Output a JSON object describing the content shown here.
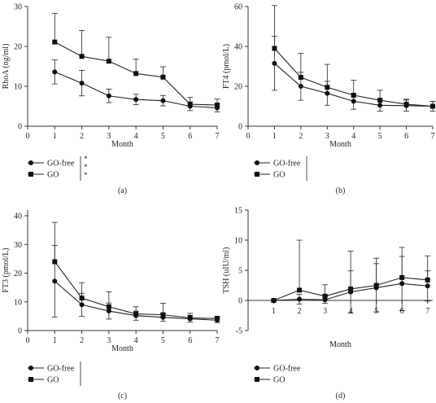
{
  "chart_data": [
    {
      "id": "a",
      "type": "line",
      "panel_label": "(a)",
      "title": "",
      "xlabel": "Month",
      "ylabel": "RhoA (ng/ml)",
      "xlim": [
        0,
        7
      ],
      "ylim": [
        0,
        30
      ],
      "xticks": [
        0,
        1,
        2,
        3,
        4,
        5,
        6,
        7
      ],
      "yticks": [
        0,
        10,
        20,
        30
      ],
      "grid": false,
      "legend_position": "below",
      "significance": "***",
      "x": [
        1,
        2,
        3,
        4,
        5,
        6,
        7
      ],
      "series": [
        {
          "name": "GO-free",
          "marker": "circle",
          "values": [
            13.6,
            10.8,
            7.6,
            6.7,
            6.4,
            5.0,
            4.6
          ],
          "error": [
            3.0,
            3.2,
            1.7,
            1.3,
            1.3,
            1.1,
            1.0
          ],
          "error_dir": "both"
        },
        {
          "name": "GO",
          "marker": "square",
          "values": [
            21.1,
            17.5,
            16.3,
            13.2,
            12.3,
            5.5,
            5.3
          ],
          "error": [
            7.2,
            6.5,
            6.0,
            3.6,
            2.6,
            1.7,
            1.5
          ],
          "error_dir": "up"
        }
      ]
    },
    {
      "id": "b",
      "type": "line",
      "panel_label": "(b)",
      "title": "",
      "xlabel": "Month",
      "ylabel": "FT4 (pmol/L)",
      "xlim": [
        0,
        7
      ],
      "ylim": [
        0,
        60
      ],
      "xticks": [
        0,
        1,
        2,
        3,
        4,
        5,
        6,
        7
      ],
      "yticks": [
        0,
        20,
        40,
        60
      ],
      "grid": false,
      "legend_position": "below",
      "significance": "*",
      "x": [
        1,
        2,
        3,
        4,
        5,
        6,
        7
      ],
      "series": [
        {
          "name": "GO-free",
          "marker": "circle",
          "values": [
            31.5,
            20.0,
            16.5,
            12.5,
            10.5,
            10.3,
            10.0
          ],
          "error": [
            13.5,
            7.0,
            6.0,
            4.0,
            3.0,
            2.8,
            2.5
          ],
          "error_dir": "both"
        },
        {
          "name": "GO",
          "marker": "square",
          "values": [
            39.0,
            24.5,
            19.5,
            15.5,
            13.0,
            11.0,
            10.0
          ],
          "error": [
            21.5,
            12.0,
            11.5,
            7.5,
            5.0,
            2.5,
            2.5
          ],
          "error_dir": "up"
        }
      ]
    },
    {
      "id": "c",
      "type": "line",
      "panel_label": "(c)",
      "title": "",
      "xlabel": "Month",
      "ylabel": "FT3 (pmol/L)",
      "xlim": [
        0,
        7
      ],
      "ylim": [
        0,
        42
      ],
      "xticks": [
        0,
        1,
        2,
        3,
        4,
        5,
        6,
        7
      ],
      "yticks": [
        0,
        10,
        20,
        30,
        40
      ],
      "grid": false,
      "legend_position": "below",
      "significance": "*",
      "x": [
        1,
        2,
        3,
        4,
        5,
        6,
        7
      ],
      "series": [
        {
          "name": "GO-free",
          "marker": "circle",
          "values": [
            17.2,
            9.0,
            6.8,
            5.2,
            4.6,
            4.1,
            3.6
          ],
          "error": [
            12.5,
            4.0,
            2.8,
            1.6,
            1.4,
            1.2,
            0.8
          ],
          "error_dir": "both"
        },
        {
          "name": "GO",
          "marker": "square",
          "values": [
            24.0,
            11.3,
            8.3,
            5.8,
            5.5,
            4.4,
            4.2
          ],
          "error": [
            13.7,
            5.4,
            5.2,
            2.5,
            4.0,
            1.6,
            0.8
          ],
          "error_dir": "up"
        }
      ]
    },
    {
      "id": "d",
      "type": "line",
      "panel_label": "(d)",
      "title": "",
      "xlabel": "Month",
      "ylabel": "TSH (uIU/ml)",
      "xlim": [
        0,
        7.2
      ],
      "ylim": [
        -5,
        15
      ],
      "xticks": [
        1,
        2,
        3,
        4,
        5,
        6,
        7
      ],
      "yticks": [
        -5,
        0,
        5,
        10,
        15
      ],
      "x_axis_at_zero": true,
      "grid": false,
      "legend_position": "below",
      "significance": "",
      "x": [
        1,
        2,
        3,
        4,
        5,
        6,
        7
      ],
      "series": [
        {
          "name": "GO-free",
          "marker": "circle",
          "values": [
            0.0,
            0.2,
            0.1,
            1.4,
            2.1,
            2.8,
            2.4
          ],
          "error": [
            0.1,
            0.8,
            0.6,
            3.5,
            4.0,
            4.5,
            2.5
          ],
          "error_dir": "both"
        },
        {
          "name": "GO",
          "marker": "square",
          "values": [
            0.0,
            1.7,
            0.7,
            1.9,
            2.5,
            3.8,
            3.4
          ],
          "error": [
            0.1,
            8.3,
            1.9,
            6.3,
            4.5,
            5.0,
            4.0
          ],
          "error_dir": "up"
        }
      ]
    }
  ]
}
